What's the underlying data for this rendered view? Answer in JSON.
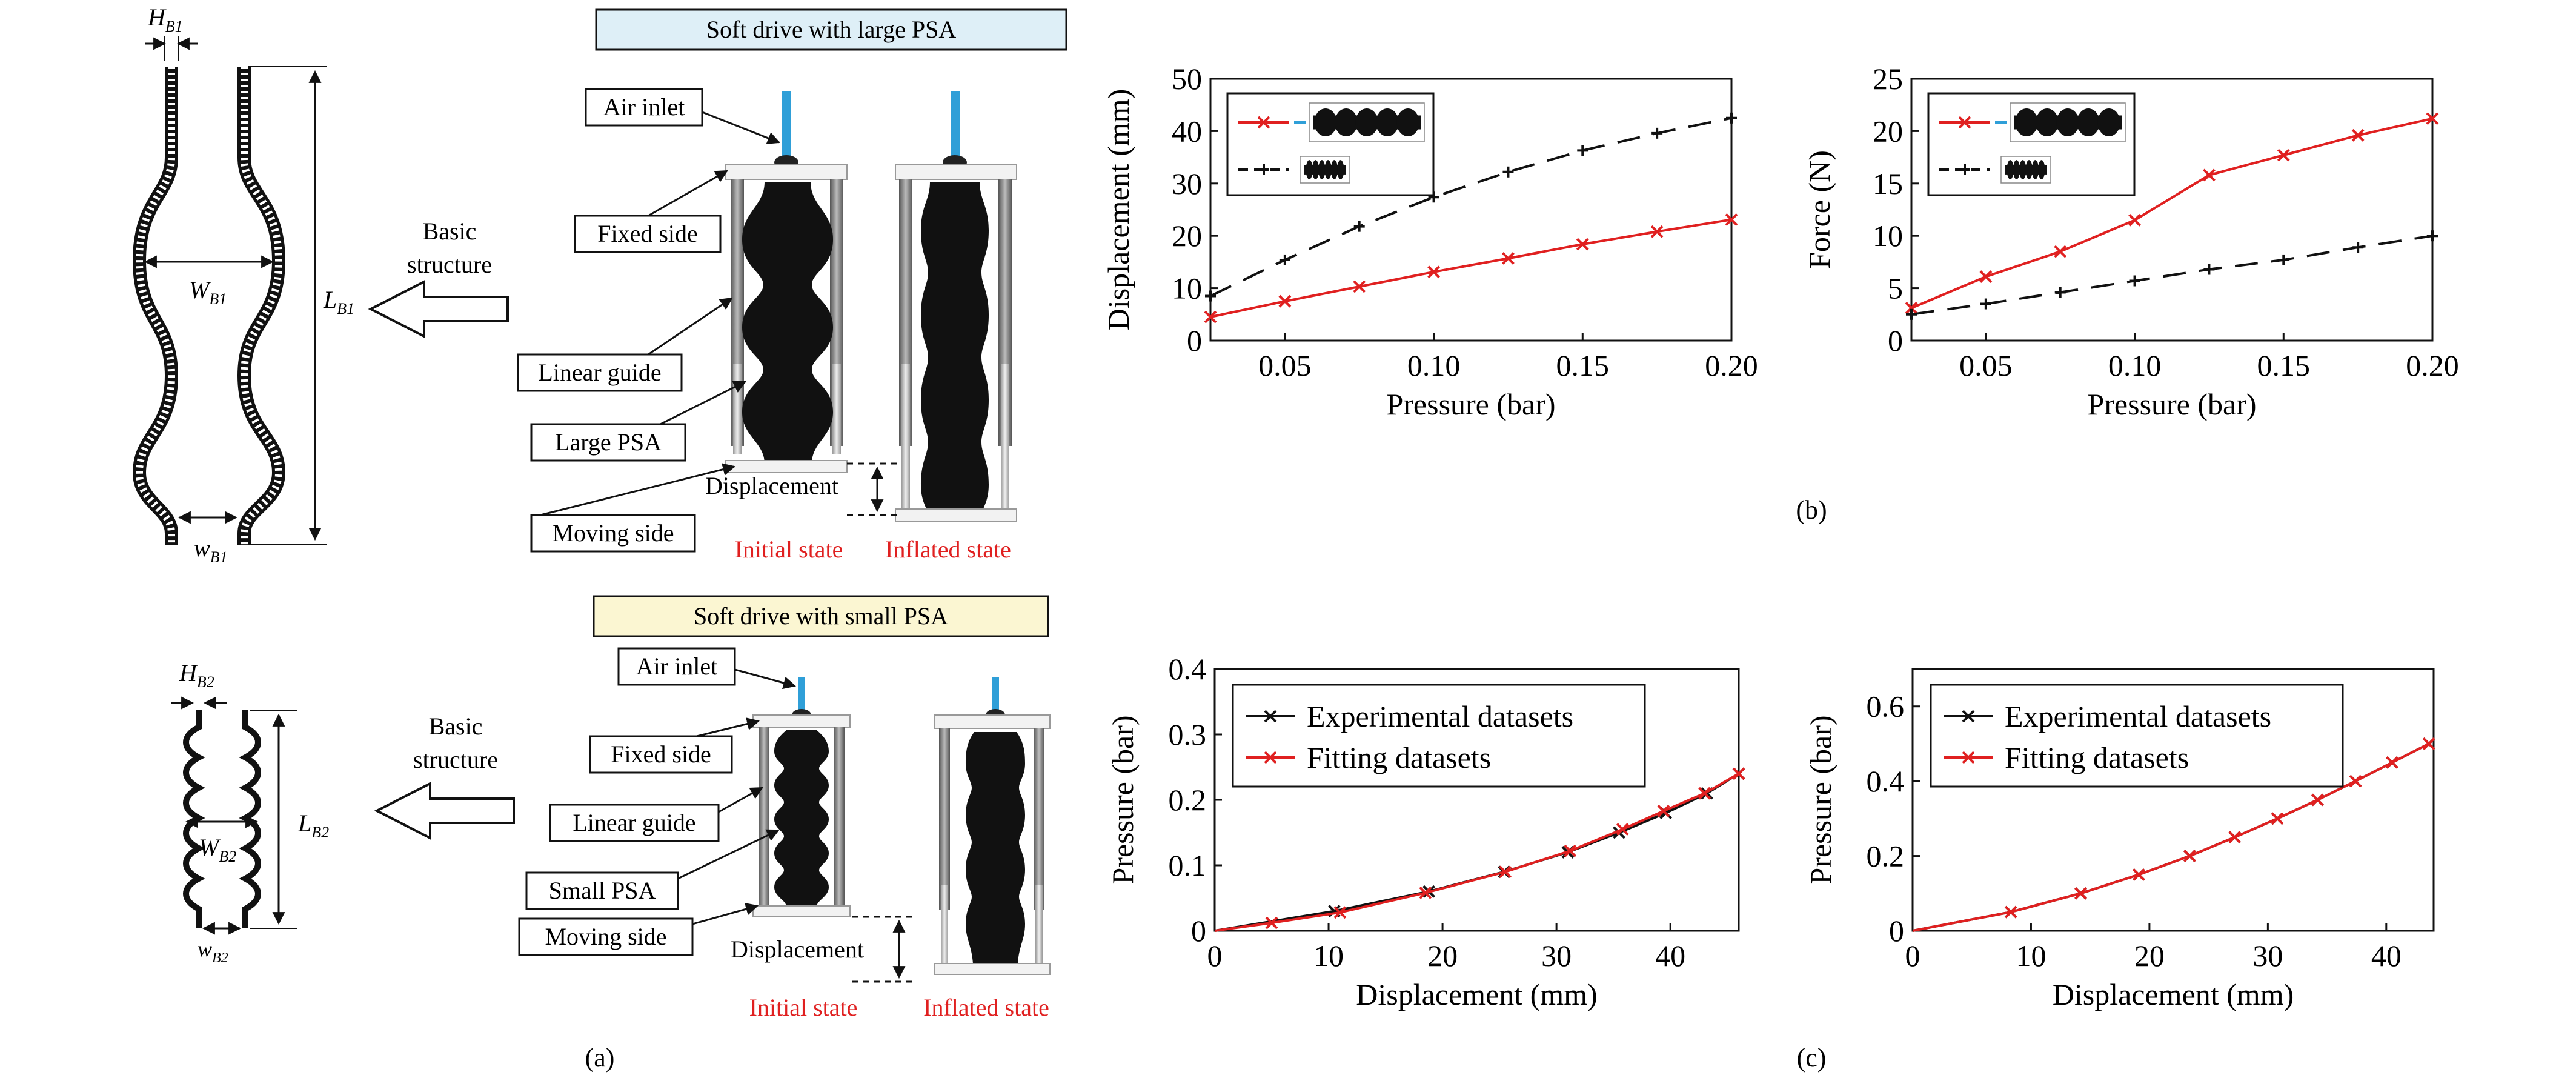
{
  "panel_labels": {
    "a": "(a)",
    "b": "(b)",
    "c": "(c)"
  },
  "colors": {
    "accent_red": "#e02020",
    "black": "#111111",
    "blue_box": "#deeff7",
    "yellow_box": "#fbf6d2",
    "pipe_blue": "#2f9fd8"
  },
  "schematic_top": {
    "dims": {
      "H": "H",
      "H_sub": "B1",
      "W": "W",
      "W_sub": "B1",
      "L": "L",
      "L_sub": "B1",
      "w": "w",
      "w_sub": "B1"
    },
    "arrow_label": [
      "Basic",
      "structure"
    ]
  },
  "schematic_bottom": {
    "dims": {
      "H": "H",
      "H_sub": "B2",
      "W": "W",
      "W_sub": "B2",
      "L": "L",
      "L_sub": "B2",
      "w": "w",
      "w_sub": "B2"
    },
    "arrow_label": [
      "Basic",
      "structure"
    ]
  },
  "drive_large": {
    "title": "Soft drive with large PSA",
    "labels": {
      "air_inlet": "Air inlet",
      "fixed_side": "Fixed side",
      "linear_guide": "Linear guide",
      "psa": "Large PSA",
      "moving_side": "Moving side"
    },
    "displacement": "Displacement",
    "states": {
      "initial": "Initial state",
      "inflated": "Inflated state"
    }
  },
  "drive_small": {
    "title": "Soft drive with small PSA",
    "labels": {
      "air_inlet": "Air inlet",
      "fixed_side": "Fixed side",
      "linear_guide": "Linear guide",
      "psa": "Small PSA",
      "moving_side": "Moving side"
    },
    "displacement": "Displacement",
    "states": {
      "initial": "Initial state",
      "inflated": "Inflated state"
    }
  },
  "chart_data": [
    {
      "id": "b-left",
      "type": "line",
      "xlabel": "Pressure (bar)",
      "ylabel": "Displacement (mm)",
      "xlim": [
        0.025,
        0.2
      ],
      "ylim": [
        0,
        50
      ],
      "xticks": [
        0.05,
        0.1,
        0.15,
        0.2
      ],
      "xtick_labels": [
        "0.05",
        "0.10",
        "0.15",
        "0.20"
      ],
      "yticks": [
        0,
        10,
        20,
        30,
        40,
        50
      ],
      "ytick_labels": [
        "0",
        "10",
        "20",
        "30",
        "40",
        "50"
      ],
      "legend": "top-left",
      "series": [
        {
          "color": "#e02020",
          "dash": "solid",
          "marker": "x",
          "icon": "large-psa",
          "x": [
            0.025,
            0.05,
            0.075,
            0.1,
            0.125,
            0.15,
            0.175,
            0.2
          ],
          "y": [
            4.5,
            7.5,
            10.3,
            13.1,
            15.7,
            18.4,
            20.8,
            23.1
          ]
        },
        {
          "color": "#111111",
          "dash": "dashed",
          "marker": "plus",
          "icon": "small-psa",
          "x": [
            0.025,
            0.05,
            0.075,
            0.1,
            0.125,
            0.15,
            0.175,
            0.2
          ],
          "y": [
            8.5,
            15.4,
            21.8,
            27.4,
            32.2,
            36.3,
            39.6,
            42.5
          ]
        }
      ]
    },
    {
      "id": "b-right",
      "type": "line",
      "xlabel": "Pressure (bar)",
      "ylabel": "Force (N)",
      "xlim": [
        0.025,
        0.2
      ],
      "ylim": [
        0,
        25
      ],
      "xticks": [
        0.05,
        0.1,
        0.15,
        0.2
      ],
      "xtick_labels": [
        "0.05",
        "0.10",
        "0.15",
        "0.20"
      ],
      "yticks": [
        0,
        5,
        10,
        15,
        20,
        25
      ],
      "ytick_labels": [
        "0",
        "5",
        "10",
        "15",
        "20",
        "25"
      ],
      "legend": "top-left",
      "series": [
        {
          "color": "#e02020",
          "dash": "solid",
          "marker": "x",
          "icon": "large-psa",
          "x": [
            0.025,
            0.05,
            0.075,
            0.1,
            0.125,
            0.15,
            0.175,
            0.2
          ],
          "y": [
            3.1,
            6.1,
            8.5,
            11.5,
            15.8,
            17.7,
            19.6,
            21.2
          ]
        },
        {
          "color": "#111111",
          "dash": "dashed",
          "marker": "plus",
          "icon": "small-psa",
          "x": [
            0.025,
            0.05,
            0.075,
            0.1,
            0.125,
            0.15,
            0.175,
            0.2
          ],
          "y": [
            2.5,
            3.5,
            4.6,
            5.7,
            6.8,
            7.7,
            8.9,
            10.0
          ]
        }
      ]
    },
    {
      "id": "c-left",
      "type": "line",
      "xlabel": "Displacement (mm)",
      "ylabel": "Pressure (bar)",
      "xlim": [
        0,
        46
      ],
      "ylim": [
        0,
        0.4
      ],
      "xticks": [
        0,
        10,
        20,
        30,
        40
      ],
      "xtick_labels": [
        "0",
        "10",
        "20",
        "30",
        "40"
      ],
      "yticks": [
        0,
        0.1,
        0.2,
        0.3,
        0.4
      ],
      "ytick_labels": [
        "0",
        "0.1",
        "0.2",
        "0.3",
        "0.4"
      ],
      "legend": "top-left",
      "series": [
        {
          "name": "Experimental datasets",
          "color": "#111111",
          "dash": "solid",
          "marker": "x",
          "x": [
            0,
            10.5,
            18.8,
            25.4,
            31,
            35.5,
            39.6,
            43.2,
            46
          ],
          "y": [
            0,
            0.03,
            0.06,
            0.09,
            0.12,
            0.15,
            0.18,
            0.21,
            0.24
          ]
        },
        {
          "name": "Fitting datasets",
          "color": "#e02020",
          "dash": "solid",
          "marker": "x",
          "x": [
            0,
            5,
            11,
            18.5,
            25.5,
            31.2,
            35.8,
            39.4,
            43,
            46
          ],
          "y": [
            0,
            0.012,
            0.028,
            0.058,
            0.09,
            0.122,
            0.155,
            0.183,
            0.21,
            0.24
          ]
        }
      ]
    },
    {
      "id": "c-right",
      "type": "line",
      "xlabel": "Displacement (mm)",
      "ylabel": "Pressure (bar)",
      "xlim": [
        0,
        44
      ],
      "ylim": [
        0,
        0.7
      ],
      "xticks": [
        0,
        10,
        20,
        30,
        40
      ],
      "xtick_labels": [
        "0",
        "10",
        "20",
        "30",
        "40"
      ],
      "yticks": [
        0,
        0.2,
        0.4,
        0.6
      ],
      "ytick_labels": [
        "0",
        "0.2",
        "0.4",
        "0.6"
      ],
      "legend": "top-left",
      "series": [
        {
          "name": "Experimental datasets",
          "color": "#111111",
          "dash": "solid",
          "marker": "x",
          "x": [
            0,
            8.3,
            14.2,
            19.1,
            23.4,
            27.2,
            30.8,
            34.2,
            37.4,
            40.5,
            43.6
          ],
          "y": [
            0,
            0.05,
            0.1,
            0.15,
            0.2,
            0.25,
            0.3,
            0.35,
            0.4,
            0.45,
            0.5
          ]
        },
        {
          "name": "Fitting datasets",
          "color": "#e02020",
          "dash": "solid",
          "marker": "x",
          "x": [
            0,
            8.3,
            14.2,
            19.1,
            23.4,
            27.2,
            30.8,
            34.2,
            37.4,
            40.5,
            43.6
          ],
          "y": [
            0,
            0.05,
            0.1,
            0.15,
            0.2,
            0.25,
            0.3,
            0.35,
            0.4,
            0.45,
            0.5
          ]
        }
      ]
    }
  ]
}
